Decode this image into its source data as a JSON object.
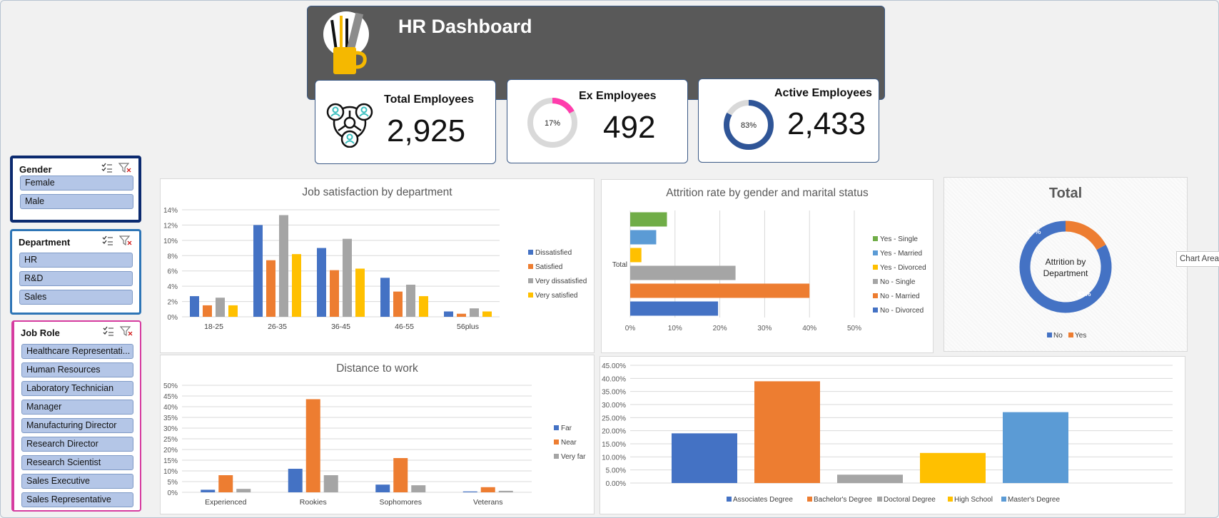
{
  "dashboard": {
    "title": "HR Dashboard"
  },
  "kpis": {
    "total": {
      "label": "Total Employees",
      "value": "2,925"
    },
    "ex": {
      "label": "Ex Employees",
      "value": "492",
      "pct_label": "17%",
      "pct": 0.17,
      "color": "#ff3cac"
    },
    "active": {
      "label": "Active Employees",
      "value": "2,433",
      "pct_label": "83%",
      "pct": 0.83,
      "color": "#2f5597"
    }
  },
  "slicers": {
    "gender": {
      "title": "Gender",
      "items": [
        "Female",
        "Male"
      ]
    },
    "department": {
      "title": "Department",
      "items": [
        "HR",
        "R&D",
        "Sales"
      ]
    },
    "job_role": {
      "title": "Job Role",
      "items": [
        "Healthcare Representati...",
        "Human Resources",
        "Laboratory Technician",
        "Manager",
        "Manufacturing Director",
        "Research Director",
        "Research Scientist",
        "Sales Executive",
        "Sales Representative"
      ]
    }
  },
  "tooltip": {
    "text": "Chart Area"
  },
  "chart_data": [
    {
      "id": "job-satisfaction",
      "type": "bar",
      "title": "Job satisfaction by department",
      "categories": [
        "18-25",
        "26-35",
        "36-45",
        "46-55",
        "56plus"
      ],
      "ylim": [
        0,
        14
      ],
      "yticks": [
        "0%",
        "2%",
        "4%",
        "6%",
        "8%",
        "10%",
        "12%",
        "14%"
      ],
      "legend": "right",
      "series": [
        {
          "name": "Dissatisfied",
          "color": "#4472c4",
          "values": [
            2.7,
            12.0,
            9.0,
            5.1,
            0.7
          ]
        },
        {
          "name": "Satisfied",
          "color": "#ed7d31",
          "values": [
            1.5,
            7.4,
            6.1,
            3.3,
            0.4
          ]
        },
        {
          "name": "Very dissatisfied",
          "color": "#a5a5a5",
          "values": [
            2.5,
            13.3,
            10.2,
            4.2,
            1.1
          ]
        },
        {
          "name": "Very satisfied",
          "color": "#ffc000",
          "values": [
            1.5,
            8.2,
            6.3,
            2.7,
            0.7
          ]
        }
      ]
    },
    {
      "id": "attrition",
      "type": "bar",
      "orientation": "horizontal",
      "title": "Attrition rate by gender and marital status",
      "category": "Total",
      "xlim": [
        0,
        50
      ],
      "xticks": [
        "0%",
        "10%",
        "20%",
        "30%",
        "40%",
        "50%"
      ],
      "legend": "right",
      "series": [
        {
          "name": "Yes - Single",
          "color": "#70ad47",
          "value": 8.2
        },
        {
          "name": "Yes - Married",
          "color": "#5b9bd5",
          "value": 5.8
        },
        {
          "name": "Yes - Divorced",
          "color": "#ffc000",
          "value": 2.5
        },
        {
          "name": "No - Single",
          "color": "#a5a5a5",
          "value": 23.5
        },
        {
          "name": "No - Married",
          "color": "#ed7d31",
          "value": 40.0
        },
        {
          "name": "No - Divorced",
          "color": "#4472c4",
          "value": 19.6
        }
      ]
    },
    {
      "id": "department-donut",
      "type": "pie",
      "title": "Total",
      "center_label": "Attrition by Department",
      "legend": "bottom",
      "slices": [
        {
          "name": "No",
          "value": 83,
          "label": "83%",
          "color": "#4472c4"
        },
        {
          "name": "Yes",
          "value": 17,
          "label": "17%",
          "color": "#ed7d31"
        }
      ]
    },
    {
      "id": "distance",
      "type": "bar",
      "title": "Distance to work",
      "categories": [
        "Experienced",
        "Rookies",
        "Sophomores",
        "Veterans"
      ],
      "ylim": [
        0,
        50
      ],
      "yticks": [
        "0%",
        "5%",
        "10%",
        "15%",
        "20%",
        "25%",
        "30%",
        "35%",
        "40%",
        "45%",
        "50%"
      ],
      "legend": "right",
      "series": [
        {
          "name": "Far",
          "color": "#4472c4",
          "values": [
            1.2,
            11.0,
            3.6,
            0.4
          ]
        },
        {
          "name": "Near",
          "color": "#ed7d31",
          "values": [
            8.0,
            43.5,
            16.0,
            2.4
          ]
        },
        {
          "name": "Very far",
          "color": "#a5a5a5",
          "values": [
            1.6,
            8.0,
            3.3,
            0.7
          ]
        }
      ]
    },
    {
      "id": "education",
      "type": "bar",
      "title": "",
      "ylim": [
        0,
        45
      ],
      "yticks": [
        "0.00%",
        "5.00%",
        "10.00%",
        "15.00%",
        "20.00%",
        "25.00%",
        "30.00%",
        "35.00%",
        "40.00%",
        "45.00%"
      ],
      "legend": "bottom",
      "series": [
        {
          "name": "Associates Degree",
          "color": "#4472c4",
          "value": 19.0
        },
        {
          "name": "Bachelor's Degree",
          "color": "#ed7d31",
          "value": 38.9
        },
        {
          "name": "Doctoral Degree",
          "color": "#a5a5a5",
          "value": 3.2
        },
        {
          "name": "High School",
          "color": "#ffc000",
          "value": 11.5
        },
        {
          "name": "Master's Degree",
          "color": "#5b9bd5",
          "value": 27.1
        }
      ]
    }
  ]
}
